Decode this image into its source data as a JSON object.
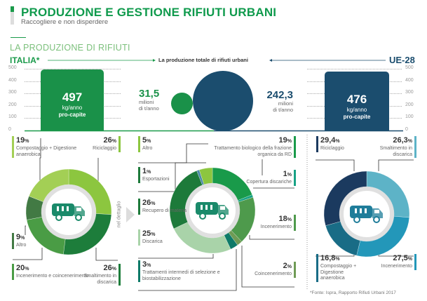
{
  "header": {
    "title": "PRODUZIONE E GESTIONE RIFIUTI URBANI",
    "subtitle": "Raccogliere e non disperdere"
  },
  "section_title": "LA PRODUZIONE DI RIFIUTI",
  "left_region": "ITALIA*",
  "right_region": "UE-28",
  "center_caption": "La produzione totale di rifiuti urbani",
  "side_label": "nel dettaglio",
  "footnote": "*Fonte: Ispra, Rapporto Rifiuti Urbani 2017",
  "colors": {
    "green": "#0f9a4c",
    "blue": "#1b4d6e"
  },
  "chart_data": [
    {
      "type": "bar",
      "title": "",
      "categories": [
        "ITALIA*",
        "UE-28"
      ],
      "values": [
        497,
        476
      ],
      "value_labels": [
        "497",
        "476"
      ],
      "unit": "kg/anno",
      "note": "pro-capite",
      "yticks": [
        "0",
        "100",
        "200",
        "300",
        "400",
        "500"
      ],
      "ylim": [
        0,
        500
      ],
      "colors": [
        "#1a9149",
        "#1b4d6e"
      ]
    },
    {
      "type": "bubble",
      "categories": [
        "ITALIA*",
        "UE-28"
      ],
      "values": [
        31.5,
        242.3
      ],
      "value_labels": [
        "31,5",
        "242,3"
      ],
      "unit_line1": "milioni",
      "unit_line2": "di t/anno",
      "colors": [
        "#1a9149",
        "#1b4d6e"
      ]
    },
    {
      "type": "pie",
      "variant": "donut",
      "name": "ITALIA*",
      "slices": [
        {
          "label": "Riciclaggio",
          "value": 26,
          "text": "26",
          "color": "#8cc63f"
        },
        {
          "label": "Smaltimento in discarica",
          "value": 26,
          "text": "26",
          "color": "#1d7d3b"
        },
        {
          "label": "Incenerimento e coincenerimento",
          "value": 20,
          "text": "20",
          "color": "#4a9c45"
        },
        {
          "label": "Altro",
          "value": 9,
          "text": "9",
          "color": "#427a44"
        },
        {
          "label": "Compostaggio + Digestione anaerobica",
          "value": 19,
          "text": "19",
          "color": "#a3cf55"
        }
      ]
    },
    {
      "type": "pie",
      "variant": "donut",
      "name": "nel dettaglio",
      "slices": [
        {
          "label": "Trattamento biologico della frazione organica da RD",
          "value": 19,
          "text": "19",
          "color": "#199a4a"
        },
        {
          "label": "Copertura discariche",
          "value": 1,
          "text": "1",
          "color": "#17a285"
        },
        {
          "label": "Incenerimento",
          "value": 18,
          "text": "18",
          "color": "#4e9a4c"
        },
        {
          "label": "Coincenerimento",
          "value": 2,
          "text": "2",
          "color": "#6f9b55"
        },
        {
          "label": "Trattamenti intermedi di selezione e biostabilizzazione",
          "value": 3,
          "text": "3",
          "color": "#0e7a68"
        },
        {
          "label": "Discarica",
          "value": 25,
          "text": "25",
          "color": "#a9d3a9"
        },
        {
          "label": "Recupero di materia",
          "value": 26,
          "text": "26",
          "color": "#1d7a3a"
        },
        {
          "label": "Esportazioni",
          "value": 1,
          "text": "1",
          "color": "#4c8aa8"
        },
        {
          "label": "Altro",
          "value": 5,
          "text": "5",
          "color": "#8cc63f"
        }
      ]
    },
    {
      "type": "pie",
      "variant": "donut",
      "name": "UE-28",
      "slices": [
        {
          "label": "Smaltimento in discarica",
          "value": 26.3,
          "text": "26,3",
          "color": "#5db3c7"
        },
        {
          "label": "Incenerimento",
          "value": 27.5,
          "text": "27,5",
          "color": "#2397b9"
        },
        {
          "label": "Compostaggio + Digestione anaerobica",
          "value": 16.8,
          "text": "16,8",
          "color": "#196c86"
        },
        {
          "label": "Riciclaggio",
          "value": 29.4,
          "text": "29,4",
          "color": "#1b3a5f"
        }
      ]
    }
  ],
  "pct_sign": "%"
}
